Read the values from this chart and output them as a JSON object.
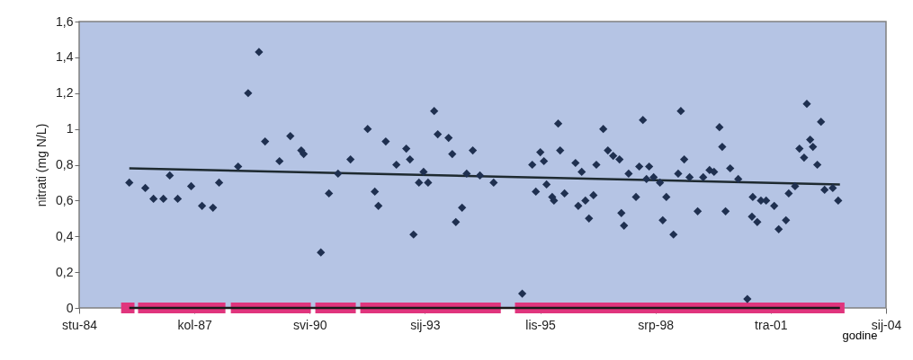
{
  "chart_data": {
    "type": "scatter",
    "ylabel": "nitrati (mg N/L)",
    "xlabel": "godine",
    "marker": "diamond",
    "grid": false,
    "legend": false,
    "xlim": [
      "1984-11-10",
      "2004-01-10"
    ],
    "xticks": [
      {
        "value": "1984-11-10",
        "label": "stu-84"
      },
      {
        "value": "1987-08-07",
        "label": "kol-87"
      },
      {
        "value": "1990-05-03",
        "label": "svi-90"
      },
      {
        "value": "1993-01-27",
        "label": "sij-93"
      },
      {
        "value": "1995-10-24",
        "label": "lis-95"
      },
      {
        "value": "1998-07-20",
        "label": "srp-98"
      },
      {
        "value": "2001-04-15",
        "label": "tra-01"
      },
      {
        "value": "2004-01-10",
        "label": "sij-04"
      }
    ],
    "ylim": [
      0,
      1.6
    ],
    "yticks": [
      0,
      {
        "value": 0.2,
        "label": "0,2"
      },
      {
        "value": 0.4,
        "label": "0,4"
      },
      {
        "value": 0.6,
        "label": "0,6"
      },
      {
        "value": 0.8,
        "label": "0,8"
      },
      1,
      {
        "value": 1.2,
        "label": "1,2"
      },
      {
        "value": 1.4,
        "label": "1,4"
      },
      {
        "value": 1.6,
        "label": "1,6"
      }
    ],
    "series": [
      {
        "type": "line",
        "marker": "none",
        "color": "#e0357d",
        "x": [
          "1985-11-09",
          "1986-03-05",
          "1986-03-20",
          "1986-04-05",
          "1988-05-02",
          "1988-05-25",
          "1988-06-18",
          "1990-05-13",
          "1990-06-01",
          "1990-06-21",
          "1991-06-07",
          "1991-06-25",
          "1991-07-16",
          "1994-11-16",
          "1995-01-15",
          "1995-03-19",
          "2003-01-15"
        ],
        "values": [
          0,
          0,
          null,
          0,
          0,
          null,
          0,
          0,
          null,
          0,
          0,
          null,
          0,
          0,
          null,
          0,
          0
        ]
      },
      {
        "type": "line",
        "marker": "none",
        "color": "#1a1a1a",
        "x": [
          "1986-01-19",
          "2002-12-06"
        ],
        "values": [
          0,
          0
        ]
      },
      {
        "type": "line",
        "marker": "none",
        "color": "#1e2a30",
        "x": [
          "1986-01-19",
          "2002-12-06"
        ],
        "values": [
          0.78,
          0.69
        ]
      },
      {
        "color": "#1f3050",
        "x": [
          "1986-01-19",
          "1986-06-07",
          "1986-08-17",
          "1986-11-11",
          "1987-01-05",
          "1987-03-15",
          "1987-07-10",
          "1987-10-12",
          "1988-01-15",
          "1988-03-08",
          "1988-08-20",
          "1988-11-15",
          "1989-02-17",
          "1989-04-11",
          "1989-08-14",
          "1989-11-16",
          "1990-02-19",
          "1990-03-12",
          "1990-08-08",
          "1990-10-17",
          "1991-01-04",
          "1991-04-22",
          "1991-09-18",
          "1991-11-19",
          "1991-12-20",
          "1992-02-22",
          "1992-05-24",
          "1992-08-18",
          "1992-09-19",
          "1992-10-20",
          "1992-12-06",
          "1993-01-15",
          "1993-02-23",
          "1993-04-17",
          "1993-05-18",
          "1993-08-20",
          "1993-09-21",
          "1993-10-22",
          "1993-12-15",
          "1994-01-24",
          "1994-03-18",
          "1994-05-19",
          "1994-09-15",
          "1995-05-21",
          "1995-08-16",
          "1995-09-16",
          "1995-10-25",
          "1995-11-25",
          "1995-12-18",
          "1996-02-05",
          "1996-02-20",
          "1996-03-28",
          "1996-04-14",
          "1996-05-22",
          "1996-08-25",
          "1996-09-18",
          "1996-10-18",
          "1996-11-19",
          "1996-12-20",
          "1997-01-28",
          "1997-02-22",
          "1997-04-23",
          "1997-06-02",
          "1997-07-18",
          "1997-09-11",
          "1997-09-27",
          "1997-10-20",
          "1997-11-29",
          "1998-02-01",
          "1998-03-01",
          "1998-04-02",
          "1998-05-03",
          "1998-05-26",
          "1998-07-04",
          "1998-08-28",
          "1998-09-21",
          "1998-10-22",
          "1998-12-23",
          "1999-02-02",
          "1999-02-25",
          "1999-03-26",
          "1999-05-12",
          "1999-07-21",
          "1999-09-07",
          "1999-11-01",
          "1999-12-10",
          "2000-01-26",
          "2000-02-19",
          "2000-03-19",
          "2000-04-28",
          "2000-07-07",
          "2000-09-24",
          "2000-11-03",
          "2000-11-10",
          "2000-12-19",
          "2001-01-20",
          "2001-03-06",
          "2001-05-15",
          "2001-06-23",
          "2001-08-25",
          "2001-09-18",
          "2001-11-12",
          "2001-12-20",
          "2002-01-29",
          "2002-02-22",
          "2002-03-23",
          "2002-04-16",
          "2002-05-24",
          "2002-06-25",
          "2002-07-26",
          "2002-10-05",
          "2002-11-21"
        ],
        "values": [
          0.7,
          0.67,
          0.61,
          0.61,
          0.74,
          0.61,
          0.68,
          0.57,
          0.56,
          0.7,
          0.79,
          1.2,
          1.43,
          0.93,
          0.82,
          0.96,
          0.88,
          0.86,
          0.31,
          0.64,
          0.75,
          0.83,
          1.0,
          0.65,
          0.57,
          0.93,
          0.8,
          0.89,
          0.83,
          0.41,
          0.7,
          0.76,
          0.7,
          1.1,
          0.97,
          0.95,
          0.86,
          0.48,
          0.56,
          0.75,
          0.88,
          0.74,
          0.7,
          0.08,
          0.8,
          0.65,
          0.87,
          0.82,
          0.69,
          0.62,
          0.6,
          1.03,
          0.88,
          0.64,
          0.81,
          0.57,
          0.76,
          0.6,
          0.5,
          0.63,
          0.8,
          1.0,
          0.88,
          0.85,
          0.83,
          0.53,
          0.46,
          0.75,
          0.62,
          0.79,
          1.05,
          0.72,
          0.79,
          0.73,
          0.7,
          0.49,
          0.62,
          0.41,
          0.75,
          1.1,
          0.83,
          0.73,
          0.54,
          0.73,
          0.77,
          0.76,
          1.01,
          0.9,
          0.54,
          0.78,
          0.72,
          0.05,
          0.51,
          0.62,
          0.48,
          0.6,
          0.6,
          0.57,
          0.44,
          0.49,
          0.64,
          0.68,
          0.89,
          0.84,
          1.14,
          0.94,
          0.9,
          0.8,
          1.04,
          0.66,
          0.67,
          0.6
        ]
      }
    ]
  }
}
